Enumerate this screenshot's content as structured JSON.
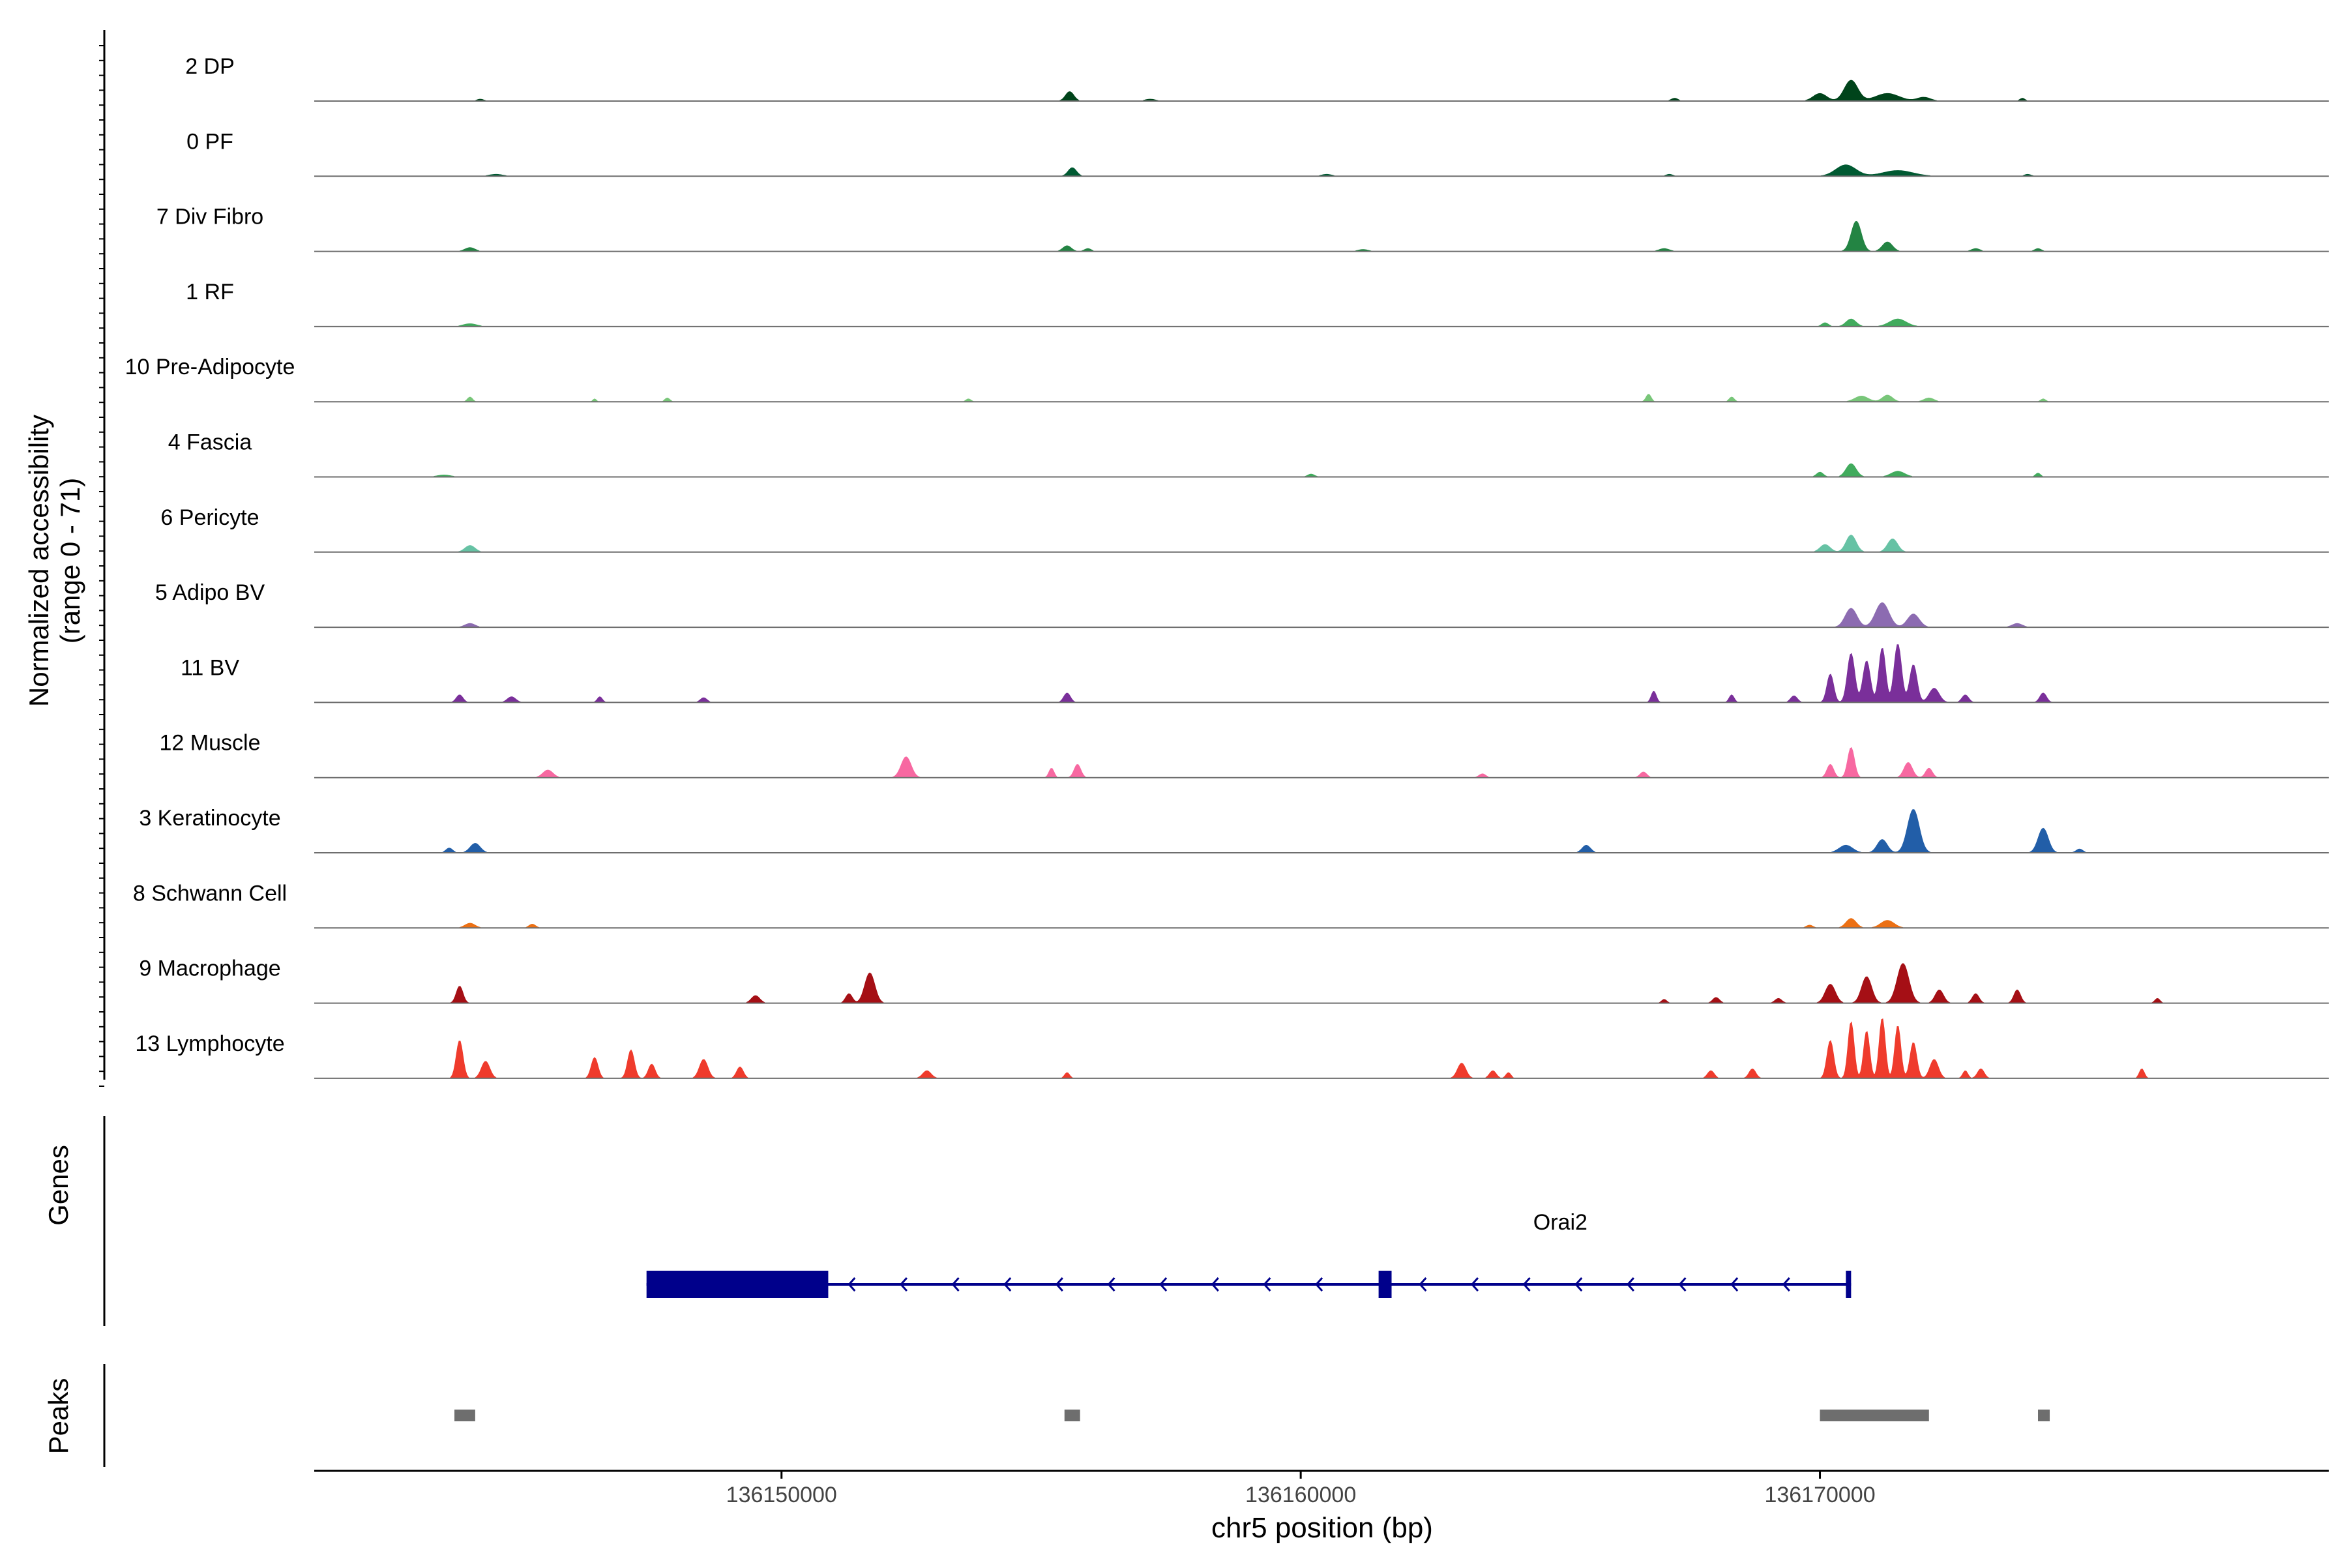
{
  "chart_data": {
    "type": "area",
    "title": "",
    "chromosome": "chr5",
    "xlabel": "chr5 position (bp)",
    "xlim": [
      136141000,
      136179800
    ],
    "xticks": [
      136150000,
      136160000,
      136170000
    ],
    "xtick_labels": [
      "136150000",
      "136160000",
      "136170000"
    ],
    "ylabel": "Normalized accessibility",
    "ylabel_range": "(range 0 - 71)",
    "ylim": [
      0,
      71
    ],
    "series": [
      {
        "name": "2 DP",
        "color": "#00441b",
        "peaks": [
          [
            136155550,
            10,
            250
          ],
          [
            136170600,
            22,
            400
          ],
          [
            136170000,
            8,
            400
          ],
          [
            136171300,
            8,
            700
          ],
          [
            136172000,
            4,
            400
          ],
          [
            136144200,
            2,
            200
          ],
          [
            136157100,
            2,
            300
          ],
          [
            136167200,
            3,
            200
          ],
          [
            136173900,
            3,
            150
          ]
        ]
      },
      {
        "name": "0 PF",
        "color": "#005a32",
        "peaks": [
          [
            136155600,
            9,
            250
          ],
          [
            136170500,
            12,
            600
          ],
          [
            136171500,
            6,
            900
          ],
          [
            136144500,
            2,
            400
          ],
          [
            136160500,
            2,
            300
          ],
          [
            136167100,
            2,
            200
          ],
          [
            136174000,
            2,
            200
          ]
        ]
      },
      {
        "name": "7 Div Fibro",
        "color": "#238443",
        "peaks": [
          [
            136170700,
            32,
            300
          ],
          [
            136171300,
            10,
            300
          ],
          [
            136144000,
            4,
            300
          ],
          [
            136155500,
            6,
            250
          ],
          [
            136155900,
            3,
            200
          ],
          [
            136161200,
            2,
            300
          ],
          [
            136167000,
            3,
            300
          ],
          [
            136173000,
            3,
            250
          ],
          [
            136174200,
            3,
            200
          ]
        ]
      },
      {
        "name": "1 RF",
        "color": "#41ab5d",
        "peaks": [
          [
            136170600,
            8,
            300
          ],
          [
            136171500,
            8,
            500
          ],
          [
            136170100,
            4,
            200
          ],
          [
            136144000,
            3,
            400
          ]
        ]
      },
      {
        "name": "10 Pre-Adipocyte",
        "color": "#78c679",
        "peaks": [
          [
            136144000,
            5,
            150
          ],
          [
            136146400,
            3,
            100
          ],
          [
            136147800,
            4,
            150
          ],
          [
            136153600,
            3,
            150
          ],
          [
            136166700,
            8,
            150
          ],
          [
            136168300,
            5,
            150
          ],
          [
            136170800,
            6,
            400
          ],
          [
            136171300,
            7,
            300
          ],
          [
            136172100,
            4,
            300
          ],
          [
            136174300,
            3,
            150
          ]
        ]
      },
      {
        "name": "4 Fascia",
        "color": "#41ab5d",
        "peaks": [
          [
            136170600,
            14,
            300
          ],
          [
            136171500,
            6,
            400
          ],
          [
            136170000,
            5,
            200
          ],
          [
            136160200,
            3,
            200
          ],
          [
            136174200,
            4,
            150
          ],
          [
            136143500,
            2,
            400
          ]
        ]
      },
      {
        "name": "6 Pericyte",
        "color": "#66c2a4",
        "peaks": [
          [
            136170600,
            18,
            300
          ],
          [
            136171400,
            14,
            300
          ],
          [
            136170100,
            8,
            300
          ],
          [
            136144000,
            7,
            300
          ]
        ]
      },
      {
        "name": "5 Adipo BV",
        "color": "#8c6bb1",
        "peaks": [
          [
            136170600,
            20,
            350
          ],
          [
            136171200,
            26,
            400
          ],
          [
            136171800,
            14,
            350
          ],
          [
            136144000,
            4,
            300
          ],
          [
            136173800,
            4,
            300
          ]
        ]
      },
      {
        "name": "11 BV",
        "color": "#7a2f9a",
        "peaks": [
          [
            136170200,
            30,
            200
          ],
          [
            136170600,
            52,
            220
          ],
          [
            136170900,
            44,
            220
          ],
          [
            136171200,
            58,
            200
          ],
          [
            136171500,
            62,
            220
          ],
          [
            136171800,
            40,
            220
          ],
          [
            136172200,
            15,
            300
          ],
          [
            136143800,
            8,
            200
          ],
          [
            136144800,
            6,
            250
          ],
          [
            136146500,
            6,
            150
          ],
          [
            136148500,
            5,
            200
          ],
          [
            136155500,
            10,
            200
          ],
          [
            136166800,
            12,
            150
          ],
          [
            136168300,
            8,
            150
          ],
          [
            136169500,
            7,
            200
          ],
          [
            136172800,
            8,
            200
          ],
          [
            136174300,
            10,
            200
          ]
        ]
      },
      {
        "name": "12 Muscle",
        "color": "#f768a1",
        "peaks": [
          [
            136152400,
            22,
            300
          ],
          [
            136155700,
            14,
            200
          ],
          [
            136155200,
            10,
            150
          ],
          [
            136145500,
            8,
            300
          ],
          [
            136170600,
            32,
            200
          ],
          [
            136170200,
            14,
            200
          ],
          [
            136171700,
            16,
            250
          ],
          [
            136172100,
            10,
            200
          ],
          [
            136166600,
            6,
            200
          ],
          [
            136163500,
            4,
            200
          ]
        ]
      },
      {
        "name": "3 Keratinocyte",
        "color": "#225ea8",
        "peaks": [
          [
            136171800,
            46,
            350
          ],
          [
            136171200,
            14,
            300
          ],
          [
            136170500,
            8,
            400
          ],
          [
            136174300,
            26,
            300
          ],
          [
            136165500,
            8,
            250
          ],
          [
            136144100,
            10,
            300
          ],
          [
            136143600,
            5,
            200
          ],
          [
            136175000,
            4,
            200
          ]
        ]
      },
      {
        "name": "8 Schwann Cell",
        "color": "#ec7014",
        "peaks": [
          [
            136170600,
            10,
            300
          ],
          [
            136171300,
            8,
            400
          ],
          [
            136144000,
            5,
            300
          ],
          [
            136145200,
            4,
            200
          ],
          [
            136169800,
            3,
            200
          ]
        ]
      },
      {
        "name": "9 Macrophage",
        "color": "#a50f15",
        "peaks": [
          [
            136151700,
            32,
            300
          ],
          [
            136151300,
            10,
            200
          ],
          [
            136143800,
            18,
            200
          ],
          [
            136149500,
            8,
            250
          ],
          [
            136170200,
            20,
            300
          ],
          [
            136170900,
            28,
            300
          ],
          [
            136171600,
            42,
            350
          ],
          [
            136172300,
            14,
            250
          ],
          [
            136173000,
            10,
            200
          ],
          [
            136173800,
            14,
            200
          ],
          [
            136176500,
            5,
            150
          ],
          [
            136167000,
            4,
            150
          ],
          [
            136168000,
            6,
            200
          ],
          [
            136169200,
            5,
            200
          ]
        ]
      },
      {
        "name": "13 Lymphocyte",
        "color": "#ef3b2c",
        "peaks": [
          [
            136143800,
            40,
            200
          ],
          [
            136144300,
            18,
            250
          ],
          [
            136146400,
            22,
            200
          ],
          [
            136147100,
            30,
            200
          ],
          [
            136147500,
            15,
            200
          ],
          [
            136148500,
            20,
            250
          ],
          [
            136149200,
            12,
            200
          ],
          [
            136152800,
            8,
            250
          ],
          [
            136155500,
            6,
            150
          ],
          [
            136163100,
            16,
            250
          ],
          [
            136163700,
            8,
            200
          ],
          [
            136170200,
            40,
            200
          ],
          [
            136170600,
            60,
            180
          ],
          [
            136170900,
            50,
            180
          ],
          [
            136171200,
            64,
            180
          ],
          [
            136171500,
            56,
            180
          ],
          [
            136171800,
            38,
            200
          ],
          [
            136172200,
            20,
            250
          ],
          [
            136173100,
            10,
            200
          ],
          [
            136167900,
            8,
            200
          ],
          [
            136168700,
            10,
            200
          ],
          [
            136176200,
            10,
            150
          ],
          [
            136164000,
            6,
            150
          ],
          [
            136172800,
            8,
            150
          ]
        ]
      }
    ],
    "genes": {
      "label": "Genes",
      "name": "Orai2",
      "color": "#00008b",
      "strand": "-",
      "start": 136147400,
      "end": 136170600,
      "exons": [
        [
          136147400,
          136150900
        ],
        [
          136161500,
          136161750
        ],
        [
          136170500,
          136170600
        ]
      ]
    },
    "peaks": {
      "label": "Peaks",
      "color": "#6e6e6e",
      "regions": [
        [
          136143700,
          136144100
        ],
        [
          136155450,
          136155750
        ],
        [
          136170000,
          136172100
        ],
        [
          136174200,
          136174400
        ]
      ]
    }
  }
}
